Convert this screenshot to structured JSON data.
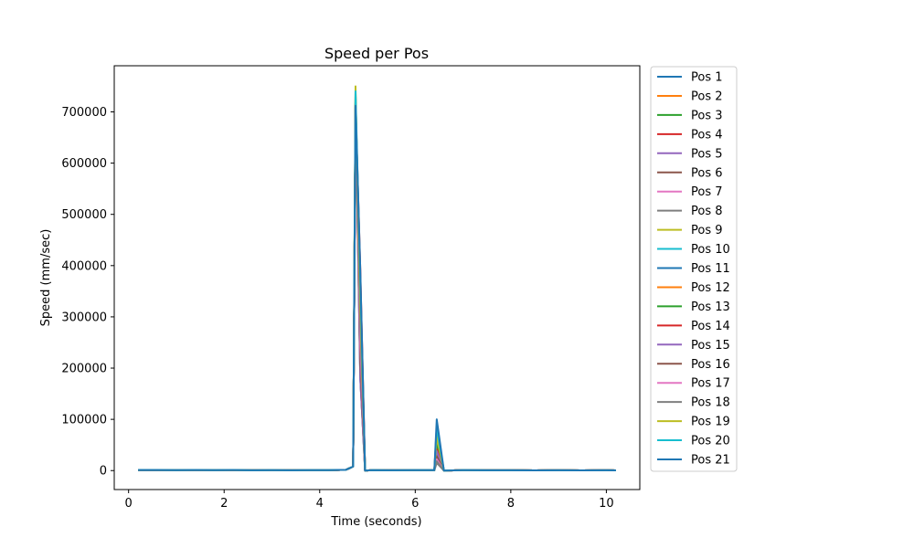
{
  "chart_data": {
    "type": "line",
    "title": "Speed per Pos",
    "xlabel": "Time (seconds)",
    "ylabel": "Speed (mm/sec)",
    "xlim": [
      -0.3,
      10.7
    ],
    "ylim": [
      -37000,
      790000
    ],
    "xticks": [
      0,
      2,
      4,
      6,
      8,
      10
    ],
    "yticks": [
      0,
      100000,
      200000,
      300000,
      400000,
      500000,
      600000,
      700000
    ],
    "xtick_labels": [
      "0",
      "2",
      "4",
      "6",
      "8",
      "10"
    ],
    "ytick_labels": [
      "0",
      "100000",
      "200000",
      "300000",
      "400000",
      "500000",
      "600000",
      "700000"
    ],
    "grid": false,
    "legend_position": "outside-right",
    "series": [
      {
        "name": "Pos 1",
        "color": "#1f77b4",
        "peak1": 720000,
        "peak2": 30000
      },
      {
        "name": "Pos 2",
        "color": "#ff7f0e",
        "peak1": 725000,
        "peak2": 80000
      },
      {
        "name": "Pos 3",
        "color": "#2ca02c",
        "peak1": 730000,
        "peak2": 55000
      },
      {
        "name": "Pos 4",
        "color": "#d62728",
        "peak1": 715000,
        "peak2": 45000
      },
      {
        "name": "Pos 5",
        "color": "#9467bd",
        "peak1": 710000,
        "peak2": 35000
      },
      {
        "name": "Pos 6",
        "color": "#8c564b",
        "peak1": 705000,
        "peak2": 25000
      },
      {
        "name": "Pos 7",
        "color": "#e377c2",
        "peak1": 700000,
        "peak2": 20000
      },
      {
        "name": "Pos 8",
        "color": "#7f7f7f",
        "peak1": 720000,
        "peak2": 15000
      },
      {
        "name": "Pos 9",
        "color": "#bcbd22",
        "peak1": 750000,
        "peak2": 40000
      },
      {
        "name": "Pos 10",
        "color": "#17becf",
        "peak1": 740000,
        "peak2": 60000
      },
      {
        "name": "Pos 11",
        "color": "#1f77b4",
        "peak1": 712000,
        "peak2": 70000
      },
      {
        "name": "Pos 12",
        "color": "#ff7f0e",
        "peak1": 716000,
        "peak2": 75000
      },
      {
        "name": "Pos 13",
        "color": "#2ca02c",
        "peak1": 718000,
        "peak2": 50000
      },
      {
        "name": "Pos 14",
        "color": "#d62728",
        "peak1": 713000,
        "peak2": 42000
      },
      {
        "name": "Pos 15",
        "color": "#9467bd",
        "peak1": 711000,
        "peak2": 38000
      },
      {
        "name": "Pos 16",
        "color": "#8c564b",
        "peak1": 709000,
        "peak2": 28000
      },
      {
        "name": "Pos 17",
        "color": "#e377c2",
        "peak1": 708000,
        "peak2": 22000
      },
      {
        "name": "Pos 18",
        "color": "#7f7f7f",
        "peak1": 714000,
        "peak2": 18000
      },
      {
        "name": "Pos 19",
        "color": "#bcbd22",
        "peak1": 735000,
        "peak2": 65000
      },
      {
        "name": "Pos 20",
        "color": "#17becf",
        "peak1": 738000,
        "peak2": 85000
      },
      {
        "name": "Pos 21",
        "color": "#1f77b4",
        "peak1": 712000,
        "peak2": 100000
      }
    ],
    "x_profile": [
      0.2,
      0.6,
      1.0,
      1.4,
      1.8,
      2.2,
      2.6,
      3.0,
      3.4,
      3.8,
      4.2,
      4.55,
      4.7,
      4.75,
      4.85,
      4.95,
      5.1,
      5.5,
      6.0,
      6.4,
      6.45,
      6.6,
      7.0,
      7.5,
      8.0,
      8.5,
      9.0,
      9.5,
      10.0,
      10.2
    ],
    "y_profile_base": [
      1000,
      1000,
      800,
      1200,
      900,
      1100,
      700,
      900,
      600,
      800,
      900,
      1500,
      8000,
      0,
      0,
      0,
      800,
      600,
      900,
      800,
      0,
      0,
      900,
      600,
      700,
      500,
      600,
      500,
      600,
      500
    ]
  }
}
